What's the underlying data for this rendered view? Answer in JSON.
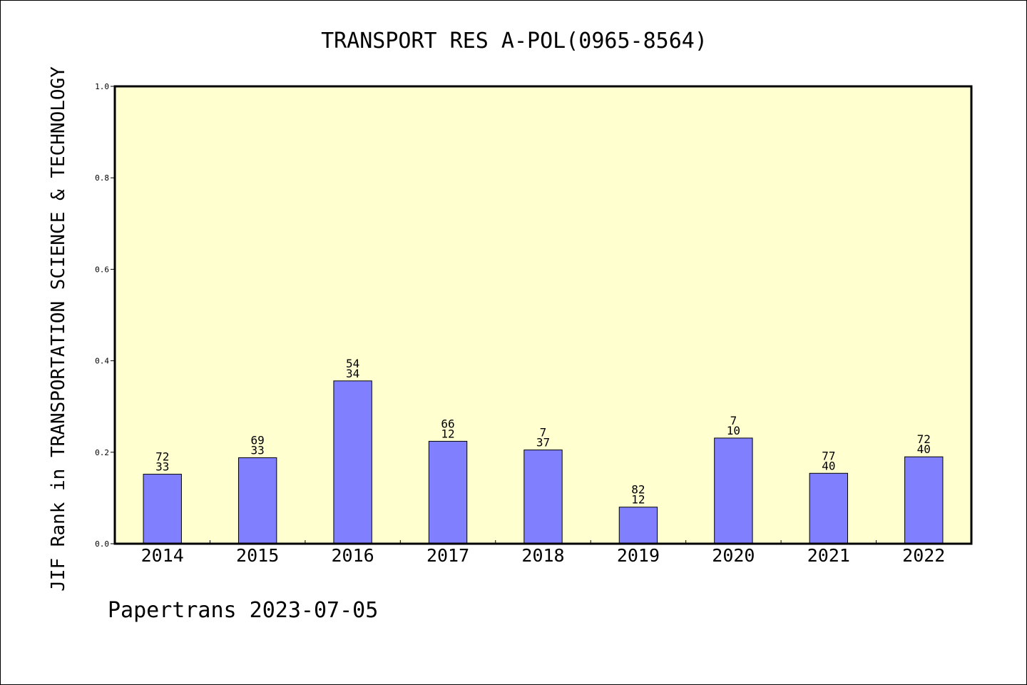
{
  "chart_data": {
    "type": "bar",
    "title": "TRANSPORT RES A-POL(0965-8564)",
    "xlabel": "",
    "ylabel": "JIF Rank in TRANSPORTATION SCIENCE & TECHNOLOGY",
    "ylim": [
      0,
      1.0
    ],
    "yticks": [
      "0.0",
      "0.2",
      "0.4",
      "0.6",
      "0.8",
      "1.0"
    ],
    "categories": [
      "2014",
      "2015",
      "2016",
      "2017",
      "2018",
      "2019",
      "2020",
      "2021",
      "2022"
    ],
    "values": [
      0.152,
      0.188,
      0.356,
      0.224,
      0.205,
      0.08,
      0.231,
      0.154,
      0.19
    ],
    "label_top": [
      "72",
      "69",
      "54",
      "66",
      "7",
      "82",
      "7",
      "77",
      "72"
    ],
    "label_bottom": [
      "33",
      "33",
      "34",
      "12",
      "37",
      "12",
      "10",
      "40",
      "40"
    ],
    "grid": false,
    "legend": "none"
  },
  "footer": "Papertrans 2023-07-05",
  "colors": {
    "plot_background": "#ffffd0",
    "bar_fill": "#8080ff",
    "bar_stroke": "#000000",
    "axis": "#000000"
  }
}
